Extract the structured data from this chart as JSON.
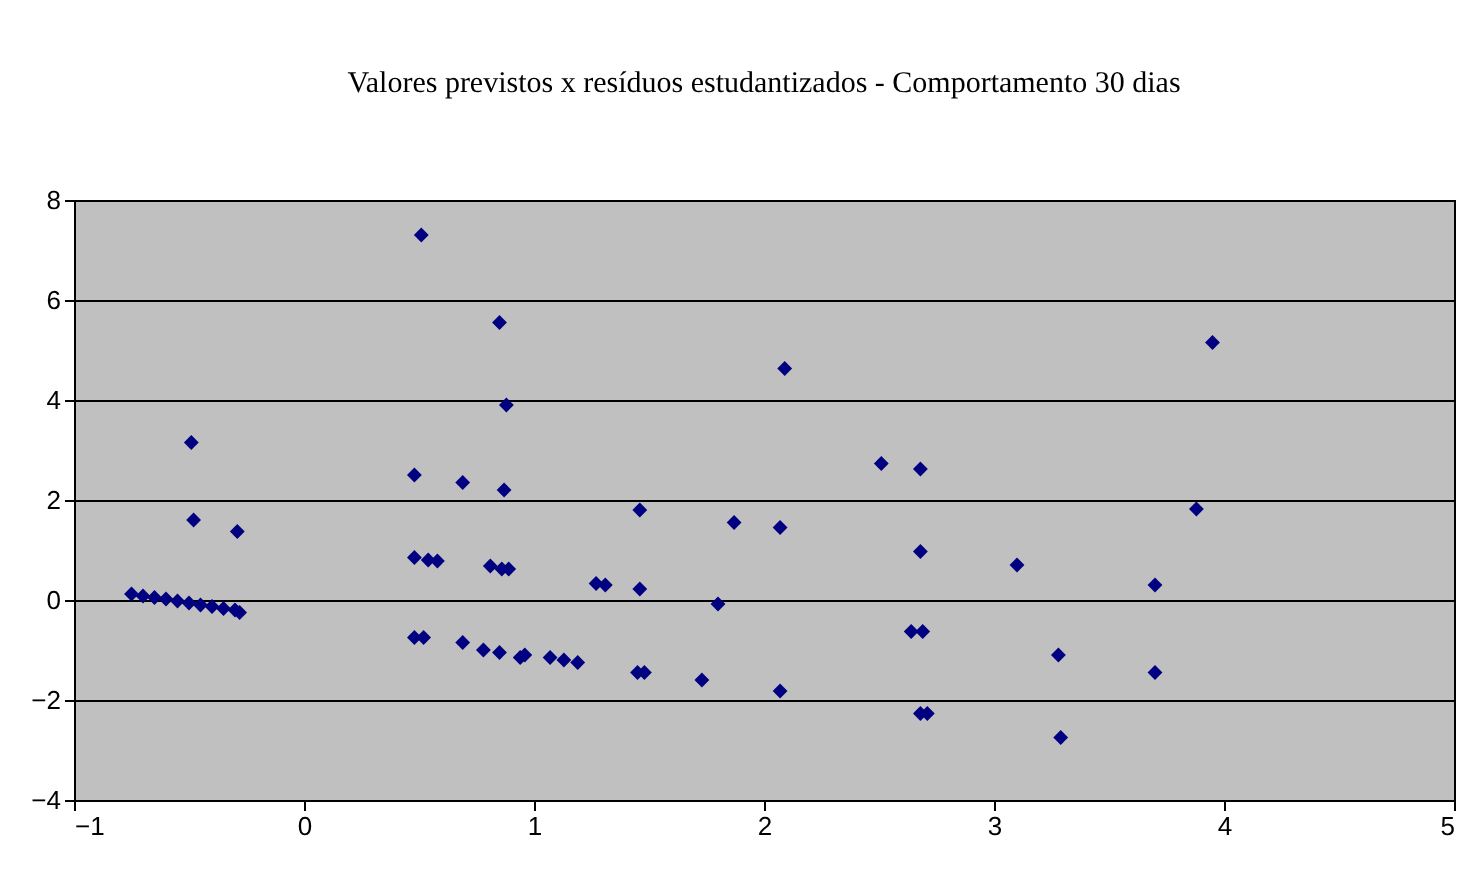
{
  "chart_data": {
    "type": "scatter",
    "title": "Valores previstos x resíduos estudantizados - Comportamento 30 dias",
    "x": [
      -0.75,
      -0.7,
      -0.65,
      -0.6,
      -0.55,
      -0.5,
      -0.45,
      -0.4,
      -0.35,
      -0.3,
      -0.28,
      -0.49,
      -0.48,
      -0.29,
      0.51,
      0.48,
      0.48,
      0.54,
      0.58,
      0.48,
      0.52,
      0.69,
      0.78,
      0.85,
      0.94,
      0.69,
      0.85,
      0.88,
      0.87,
      0.81,
      0.86,
      0.89,
      0.96,
      1.07,
      1.13,
      1.19,
      1.27,
      1.31,
      1.46,
      1.46,
      1.45,
      1.48,
      1.73,
      1.8,
      1.87,
      2.07,
      2.09,
      2.07,
      2.51,
      2.68,
      2.68,
      2.64,
      2.69,
      2.68,
      2.71,
      3.1,
      3.28,
      3.29,
      3.7,
      3.7,
      3.88,
      3.95
    ],
    "series": [
      {
        "color": "#000080",
        "values": [
          0.12,
          0.08,
          0.05,
          0.02,
          -0.02,
          -0.06,
          -0.1,
          -0.13,
          -0.17,
          -0.2,
          -0.25,
          3.15,
          1.6,
          1.37,
          7.3,
          2.5,
          0.85,
          0.8,
          0.78,
          -0.75,
          -0.75,
          -0.85,
          -1.0,
          -1.05,
          -1.15,
          2.35,
          5.55,
          3.9,
          2.2,
          0.68,
          0.62,
          0.62,
          -1.1,
          -1.15,
          -1.2,
          -1.25,
          0.33,
          0.3,
          1.8,
          0.22,
          -1.45,
          -1.45,
          -1.6,
          -0.08,
          1.55,
          1.45,
          4.63,
          -1.82,
          2.73,
          2.62,
          0.97,
          -0.63,
          -0.63,
          -2.27,
          -2.27,
          0.7,
          -1.1,
          -2.75,
          0.3,
          -1.45,
          1.82,
          5.15
        ]
      }
    ],
    "xlim": [
      -1,
      5
    ],
    "xticks": [
      -1,
      0,
      1,
      2,
      3,
      4,
      5
    ],
    "ylim": [
      -4,
      8
    ],
    "yticks": [
      -4,
      -2,
      0,
      2,
      4,
      6,
      8
    ],
    "grid": "y",
    "marker": "diamond"
  }
}
